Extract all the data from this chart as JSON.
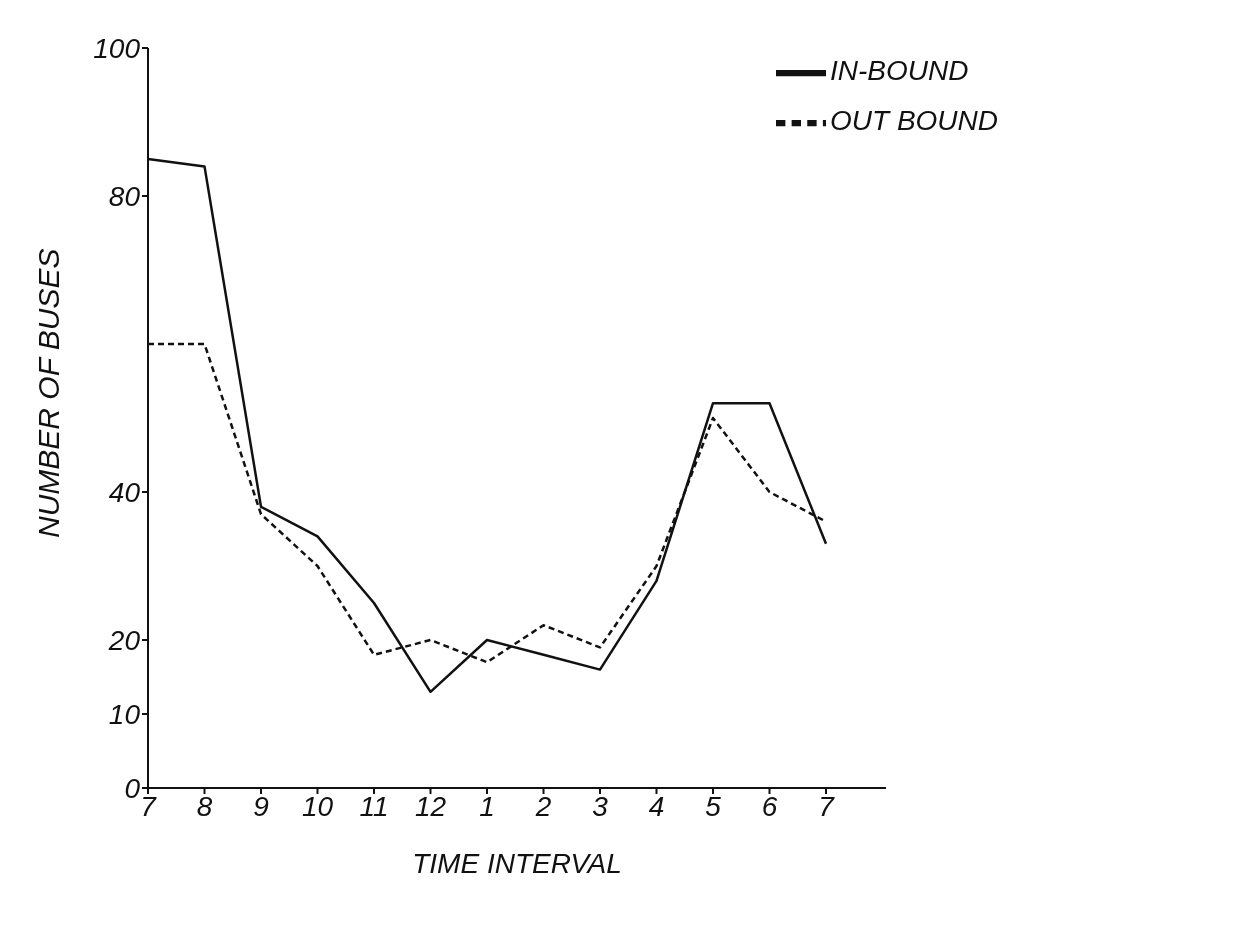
{
  "chart_data": {
    "type": "line",
    "xlabel": "TIME INTERVAL",
    "ylabel": "NUMBER OF BUSES",
    "categories": [
      "7",
      "8",
      "9",
      "10",
      "11",
      "12",
      "1",
      "2",
      "3",
      "4",
      "5",
      "6",
      "7"
    ],
    "series": [
      {
        "name": "IN-BOUND",
        "color": "#111111",
        "line_style": "solid",
        "values": [
          85,
          84,
          38,
          34,
          25,
          13,
          20,
          18,
          16,
          28,
          52,
          52,
          33
        ]
      },
      {
        "name": "OUT BOUND",
        "color": "#111111",
        "line_style": "dashed",
        "values": [
          60,
          60,
          37,
          30,
          18,
          20,
          17,
          22,
          19,
          30,
          50,
          40,
          36
        ]
      }
    ],
    "ylim": [
      0,
      100
    ],
    "yticks": [
      0,
      10,
      20,
      40,
      80,
      100
    ],
    "grid": false,
    "legend": "top right",
    "marker": "none"
  }
}
